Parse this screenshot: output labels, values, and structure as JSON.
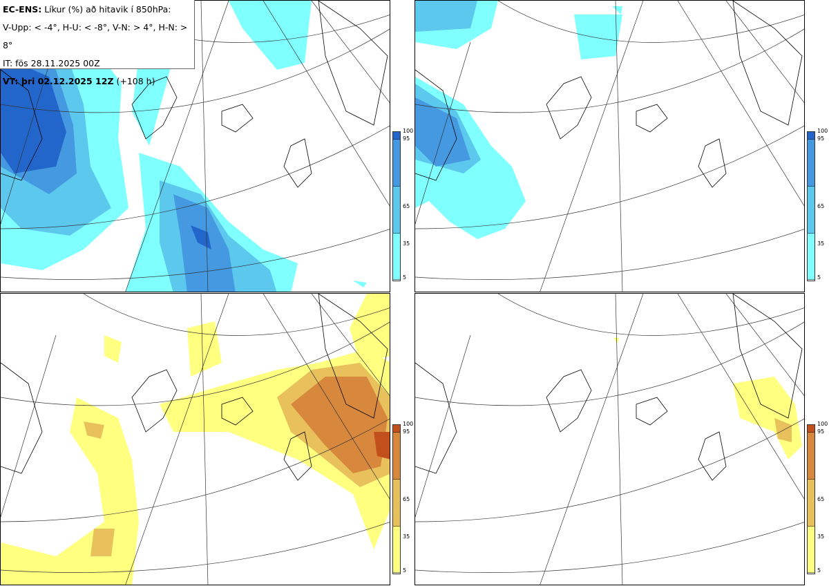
{
  "legend": {
    "model": "EC-ENS:",
    "title": "Líkur (%) að hitavik í 850hPa:",
    "thresholds": "V-Upp: < -4°, H-U: < -8°, V-N: > 4°, H-N: > 8°",
    "init_time": "IT: fös 28.11.2025 00Z",
    "valid_label": "VT: þri 02.12.2025 12Z",
    "lead": "(+108 h)"
  },
  "colorbar": {
    "labels": [
      "100",
      "95",
      "65",
      "35",
      "5"
    ],
    "cold_colors": [
      "#2266cc",
      "#4499e0",
      "#5cc8ee",
      "#80ffff"
    ],
    "warm_colors": [
      "#c2501c",
      "#d8883c",
      "#e8c05c",
      "#ffff80"
    ]
  },
  "panels": [
    {
      "id": "cold-4",
      "scheme": "cold"
    },
    {
      "id": "cold-8",
      "scheme": "cold"
    },
    {
      "id": "warm-4",
      "scheme": "warm"
    },
    {
      "id": "warm-8",
      "scheme": "warm"
    }
  ]
}
